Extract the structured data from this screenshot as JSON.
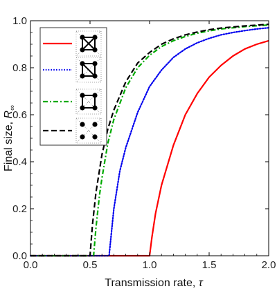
{
  "chart_data": {
    "type": "line",
    "xlabel": "Transmission rate, ",
    "xlabel_var": "τ",
    "ylabel": "Final size, ",
    "ylabel_var": "R",
    "ylabel_sub": "∞",
    "xlim": [
      0.0,
      2.0
    ],
    "ylim": [
      0.0,
      1.0
    ],
    "xticks": [
      0.0,
      0.5,
      1.0,
      1.5,
      2.0
    ],
    "xtick_labels": [
      "0.0",
      "0.5",
      "1.0",
      "1.5",
      "2.0"
    ],
    "yticks": [
      0.0,
      0.2,
      0.4,
      0.6,
      0.8,
      1.0
    ],
    "ytick_labels": [
      "0.0",
      "0.2",
      "0.4",
      "0.6",
      "0.8",
      "1.0"
    ],
    "grid": false,
    "legend_position": "top-left",
    "series": [
      {
        "key": "k4_clique",
        "color": "#ff0000",
        "style": "solid",
        "threshold": 1.0,
        "x": [
          0.0,
          1.0,
          1.02,
          1.05,
          1.1,
          1.2,
          1.3,
          1.4,
          1.5,
          1.6,
          1.7,
          1.8,
          1.9,
          2.0
        ],
        "y": [
          0.0,
          0.0,
          0.08,
          0.18,
          0.3,
          0.47,
          0.6,
          0.69,
          0.76,
          0.81,
          0.85,
          0.88,
          0.9,
          0.915
        ]
      },
      {
        "key": "square_one_diagonal",
        "color": "#0000ee",
        "style": "dotted",
        "threshold": 0.66,
        "x": [
          0.0,
          0.66,
          0.68,
          0.7,
          0.75,
          0.8,
          0.9,
          1.0,
          1.1,
          1.2,
          1.3,
          1.4,
          1.5,
          1.6,
          1.7,
          1.8,
          1.9,
          2.0
        ],
        "y": [
          0.0,
          0.0,
          0.1,
          0.2,
          0.36,
          0.46,
          0.61,
          0.72,
          0.79,
          0.844,
          0.88,
          0.906,
          0.925,
          0.94,
          0.95,
          0.958,
          0.965,
          0.97
        ]
      },
      {
        "key": "square_cycle",
        "color": "#00aa00",
        "style": "dashdot",
        "threshold": 0.53,
        "x": [
          0.0,
          0.53,
          0.55,
          0.58,
          0.6,
          0.65,
          0.7,
          0.8,
          0.9,
          1.0,
          1.1,
          1.2,
          1.3,
          1.4,
          1.5,
          1.6,
          1.8,
          2.0
        ],
        "y": [
          0.0,
          0.0,
          0.12,
          0.26,
          0.33,
          0.48,
          0.58,
          0.715,
          0.8,
          0.853,
          0.89,
          0.915,
          0.933,
          0.947,
          0.957,
          0.965,
          0.975,
          0.982
        ]
      },
      {
        "key": "four_isolated_nodes",
        "color": "#000000",
        "style": "dashed",
        "threshold": 0.5,
        "x": [
          0.0,
          0.5,
          0.52,
          0.55,
          0.6,
          0.65,
          0.7,
          0.8,
          0.9,
          1.0,
          1.1,
          1.2,
          1.3,
          1.4,
          1.5,
          1.6,
          1.8,
          2.0
        ],
        "y": [
          0.0,
          0.0,
          0.13,
          0.27,
          0.43,
          0.54,
          0.62,
          0.74,
          0.82,
          0.865,
          0.9,
          0.923,
          0.94,
          0.952,
          0.962,
          0.969,
          0.978,
          0.985
        ]
      }
    ]
  }
}
